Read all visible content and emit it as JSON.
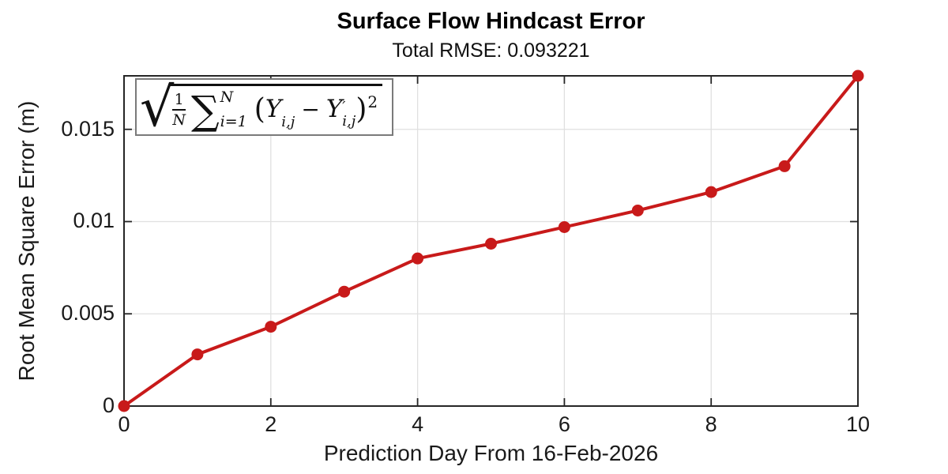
{
  "chart_data": {
    "type": "line",
    "title": "Surface Flow Hindcast Error",
    "subtitle": "Total RMSE: 0.093221",
    "xlabel": "Prediction Day From 16-Feb-2026",
    "ylabel": "Root Mean Square Error (m)",
    "x": [
      0,
      1,
      2,
      3,
      4,
      5,
      6,
      7,
      8,
      9,
      10
    ],
    "values": [
      0.0,
      0.0028,
      0.0043,
      0.0062,
      0.008,
      0.0088,
      0.0097,
      0.0106,
      0.0116,
      0.013,
      0.0179
    ],
    "series_name": "RMSE",
    "xlim": [
      0,
      10
    ],
    "ylim": [
      0,
      0.0179
    ],
    "x_ticks": [
      0,
      2,
      4,
      6,
      8,
      10
    ],
    "x_tick_labels": [
      "0",
      "2",
      "4",
      "6",
      "8",
      "10"
    ],
    "y_ticks": [
      0,
      0.005,
      0.01,
      0.015
    ],
    "y_tick_labels": [
      "0",
      "0.005",
      "0.01",
      "0.015"
    ],
    "grid": true,
    "legend": "none",
    "line_color": "#c81a1a",
    "marker": "filled-circle",
    "annotation_formula": "sqrt((1/N) * sum_{i=1}^{N} (Y_{i,j} - Y'_{i,j})^2)"
  },
  "formula": {
    "radical": "√",
    "frac_num": "1",
    "frac_den": "N",
    "sum": "∑",
    "sum_upper": "N",
    "sum_lower": "i=1",
    "lparen": "(",
    "y": "Y",
    "sub_ij": "i,j",
    "minus": "−",
    "prime": "′",
    "rparen": ")",
    "power": "2"
  },
  "colors": {
    "line": "#c81a1a",
    "axis": "#262626",
    "grid": "#e0e0e0",
    "text": "#1a1a1a",
    "formula_border": "#7a7a7a",
    "background": "#ffffff"
  }
}
